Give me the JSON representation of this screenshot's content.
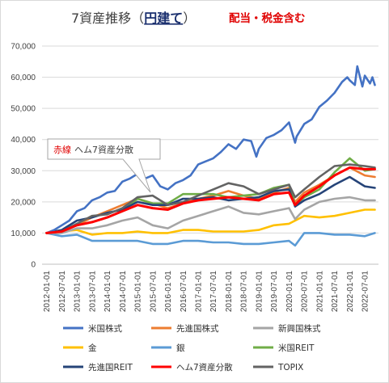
{
  "title": {
    "prefix": "7資産推移（",
    "emphasis": "円建て",
    "suffix": "）",
    "subtitle": "配当・税金含む"
  },
  "annotation": {
    "red_part": "赤線",
    "rest": "ヘム7資産分散"
  },
  "colors": {
    "us_stocks": "#4472c4",
    "developed_stocks": "#ed7d31",
    "emerging_stocks": "#a5a5a5",
    "gold": "#ffc000",
    "silver": "#5b9bd5",
    "us_reit": "#70ad47",
    "developed_reit": "#264478",
    "hemu7": "#ff0000",
    "topix": "#636363"
  },
  "chart_data": {
    "type": "line",
    "x": [
      "2012-01-01",
      "2012-07-01",
      "2013-01-01",
      "2013-07-01",
      "2014-01-01",
      "2014-07-01",
      "2015-01-01",
      "2015-07-01",
      "2016-01-01",
      "2016-07-01",
      "2017-01-01",
      "2017-07-01",
      "2018-01-01",
      "2018-07-01",
      "2019-01-01",
      "2019-07-01",
      "2020-01-01",
      "2020-07-01",
      "2021-01-01",
      "2021-07-01",
      "2022-01-01",
      "2022-07-01"
    ],
    "x_tick_labels": [
      "2012-01-01",
      "2012-07-01",
      "2013-01-01",
      "2013-07-01",
      "2014-01-01",
      "2014-07-01",
      "2015-01-01",
      "2015-07-01",
      "2016-01-01",
      "2016-07-01",
      "2017-01-01",
      "2017-07-01",
      "2018-01-01",
      "2018-07-01",
      "2019-01-01",
      "2019-07-01",
      "2020-01-01",
      "2020-07-01",
      "2021-01-01",
      "2021-07-01",
      "2022-01-01",
      "2022-07-01"
    ],
    "y_tick_labels": [
      "0",
      "10,000",
      "20,000",
      "30,000",
      "40,000",
      "50,000",
      "60,000",
      "70,000"
    ],
    "ylim": [
      0,
      70000
    ],
    "series": [
      {
        "name": "米国株式",
        "color_key": "us_stocks",
        "x": [
          2012.0,
          2012.25,
          2012.5,
          2012.75,
          2013.0,
          2013.25,
          2013.5,
          2013.75,
          2014.0,
          2014.25,
          2014.5,
          2014.75,
          2015.0,
          2015.25,
          2015.5,
          2015.75,
          2016.0,
          2016.25,
          2016.5,
          2016.75,
          2017.0,
          2017.25,
          2017.5,
          2017.75,
          2018.0,
          2018.25,
          2018.5,
          2018.75,
          2018.92,
          2019.0,
          2019.25,
          2019.5,
          2019.75,
          2020.0,
          2020.2,
          2020.25,
          2020.5,
          2020.75,
          2021.0,
          2021.25,
          2021.5,
          2021.75,
          2021.92,
          2022.0,
          2022.17,
          2022.25,
          2022.42,
          2022.5,
          2022.67,
          2022.75,
          2022.83
        ],
        "y": [
          10000,
          11000,
          12500,
          14000,
          17000,
          18000,
          20500,
          21500,
          23000,
          23500,
          26500,
          27500,
          29000,
          27500,
          28500,
          25000,
          24000,
          26000,
          27000,
          28500,
          32000,
          33000,
          34000,
          36000,
          38500,
          37000,
          40000,
          39500,
          34500,
          37000,
          40500,
          41500,
          43000,
          45500,
          39000,
          41000,
          45000,
          46500,
          50500,
          52500,
          55000,
          58500,
          60000,
          59000,
          57500,
          63500,
          57000,
          60500,
          58000,
          60000,
          57500
        ]
      },
      {
        "name": "先進国株式",
        "color_key": "developed_stocks",
        "x": [
          2012.0,
          2012.5,
          2013.0,
          2013.5,
          2014.0,
          2014.5,
          2015.0,
          2015.5,
          2016.0,
          2016.5,
          2017.0,
          2017.5,
          2018.0,
          2018.5,
          2019.0,
          2019.5,
          2020.0,
          2020.2,
          2020.5,
          2021.0,
          2021.5,
          2022.0,
          2022.5,
          2022.83
        ],
        "y": [
          10000,
          10500,
          12500,
          15000,
          17000,
          19000,
          21000,
          19500,
          18000,
          19500,
          21000,
          22000,
          23500,
          22000,
          21000,
          23000,
          24500,
          20000,
          23000,
          25500,
          28500,
          31000,
          28500,
          28000
        ]
      },
      {
        "name": "新興国株式",
        "color_key": "emerging_stocks",
        "x": [
          2012.0,
          2012.5,
          2013.0,
          2013.5,
          2014.0,
          2014.5,
          2015.0,
          2015.5,
          2016.0,
          2016.5,
          2017.0,
          2017.5,
          2018.0,
          2018.5,
          2019.0,
          2019.5,
          2020.0,
          2020.2,
          2020.5,
          2021.0,
          2021.5,
          2022.0,
          2022.5,
          2022.83
        ],
        "y": [
          10000,
          10000,
          11500,
          11500,
          12500,
          14000,
          15000,
          12500,
          11500,
          14000,
          15500,
          17000,
          18500,
          16500,
          16000,
          17000,
          18000,
          14500,
          17500,
          20000,
          21000,
          21500,
          20500,
          20500
        ]
      },
      {
        "name": "金",
        "color_key": "gold",
        "x": [
          2012.0,
          2012.5,
          2013.0,
          2013.5,
          2014.0,
          2014.5,
          2015.0,
          2015.5,
          2016.0,
          2016.5,
          2017.0,
          2017.5,
          2018.0,
          2018.5,
          2019.0,
          2019.5,
          2020.0,
          2020.5,
          2021.0,
          2021.5,
          2022.0,
          2022.5,
          2022.83
        ],
        "y": [
          10000,
          10500,
          11000,
          9500,
          10000,
          10000,
          10500,
          10000,
          10000,
          11000,
          11000,
          10500,
          10500,
          10500,
          11000,
          12500,
          13000,
          15500,
          15000,
          15500,
          16500,
          17500,
          17500
        ]
      },
      {
        "name": "銀",
        "color_key": "silver",
        "x": [
          2012.0,
          2012.5,
          2013.0,
          2013.5,
          2014.0,
          2014.5,
          2015.0,
          2015.5,
          2016.0,
          2016.5,
          2017.0,
          2017.5,
          2018.0,
          2018.5,
          2019.0,
          2019.5,
          2020.0,
          2020.2,
          2020.5,
          2021.0,
          2021.5,
          2022.0,
          2022.5,
          2022.83
        ],
        "y": [
          10000,
          9000,
          9500,
          7500,
          7500,
          7500,
          7500,
          6500,
          6500,
          7500,
          7500,
          7000,
          7000,
          6500,
          6500,
          7000,
          7500,
          6000,
          10000,
          10000,
          9500,
          9500,
          9000,
          10000
        ]
      },
      {
        "name": "米国REIT",
        "color_key": "us_reit",
        "x": [
          2012.0,
          2012.5,
          2013.0,
          2013.5,
          2014.0,
          2014.5,
          2015.0,
          2015.5,
          2016.0,
          2016.5,
          2017.0,
          2017.5,
          2018.0,
          2018.5,
          2019.0,
          2019.5,
          2020.0,
          2020.2,
          2020.5,
          2021.0,
          2021.5,
          2022.0,
          2022.5,
          2022.83
        ],
        "y": [
          10000,
          11000,
          12500,
          13500,
          15000,
          17000,
          21000,
          19500,
          19500,
          22500,
          22500,
          22500,
          21500,
          22000,
          22500,
          24500,
          25500,
          19000,
          21500,
          24000,
          29500,
          34000,
          30000,
          30500
        ]
      },
      {
        "name": "先進国REIT",
        "color_key": "developed_reit",
        "x": [
          2012.0,
          2012.5,
          2013.0,
          2013.5,
          2014.0,
          2014.5,
          2015.0,
          2015.5,
          2016.0,
          2016.5,
          2017.0,
          2017.5,
          2018.0,
          2018.5,
          2019.0,
          2019.5,
          2020.0,
          2020.2,
          2020.5,
          2021.0,
          2021.5,
          2022.0,
          2022.5,
          2022.83
        ],
        "y": [
          10000,
          11000,
          14000,
          15000,
          16500,
          17500,
          20000,
          19000,
          19000,
          21000,
          21000,
          21500,
          20500,
          21000,
          21500,
          23500,
          24000,
          18500,
          20500,
          22500,
          25500,
          28000,
          25000,
          24500
        ]
      },
      {
        "name": "ヘム7資産分散",
        "color_key": "hemu7",
        "x": [
          2012.0,
          2012.5,
          2013.0,
          2013.5,
          2014.0,
          2014.5,
          2015.0,
          2015.5,
          2016.0,
          2016.5,
          2017.0,
          2017.5,
          2018.0,
          2018.5,
          2019.0,
          2019.5,
          2020.0,
          2020.2,
          2020.5,
          2021.0,
          2021.5,
          2022.0,
          2022.5,
          2022.83
        ],
        "y": [
          10000,
          10500,
          12500,
          13500,
          15000,
          17000,
          19000,
          18000,
          17500,
          19500,
          20500,
          21000,
          21500,
          21000,
          20500,
          22500,
          23000,
          19000,
          22000,
          25000,
          28500,
          31000,
          30500,
          30500
        ]
      },
      {
        "name": "TOPIX",
        "color_key": "topix",
        "x": [
          2012.0,
          2012.5,
          2013.0,
          2013.5,
          2014.0,
          2014.5,
          2015.0,
          2015.5,
          2016.0,
          2016.5,
          2017.0,
          2017.5,
          2018.0,
          2018.5,
          2019.0,
          2019.5,
          2020.0,
          2020.2,
          2020.5,
          2021.0,
          2021.5,
          2022.0,
          2022.5,
          2022.83
        ],
        "y": [
          10000,
          10500,
          13000,
          15500,
          16000,
          18000,
          21500,
          22000,
          19000,
          20000,
          22000,
          24000,
          26000,
          25000,
          22500,
          24000,
          25500,
          21500,
          24000,
          28000,
          31500,
          32000,
          31500,
          31000
        ]
      }
    ],
    "legend": [
      [
        "米国株式",
        "先進国株式",
        "新興国株式"
      ],
      [
        "金",
        "銀",
        "米国REIT"
      ],
      [
        "先進国REIT",
        "ヘム7資産分散",
        "TOPIX"
      ]
    ],
    "legend_position": "bottom",
    "grid": true
  }
}
